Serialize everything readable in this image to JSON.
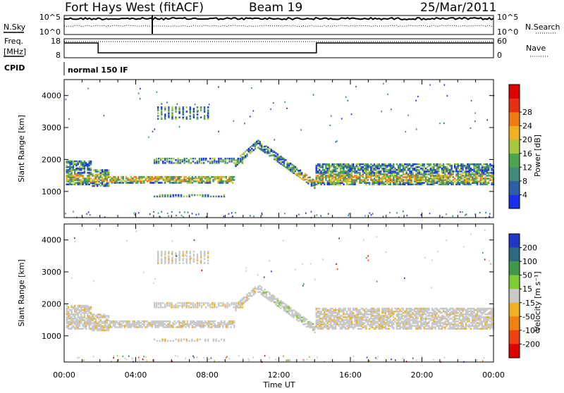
{
  "header": {
    "station": "Fort Hays West (fitACF)",
    "beam": "Beam 19",
    "date": "25/Mar/2011"
  },
  "aux_panels": {
    "nsky_label": "N.Sky",
    "nsky_ticks": [
      "10^5",
      "10^0"
    ],
    "nsearch_label": "N.Search",
    "nsearch_ticks": [
      "10^5",
      "10^0"
    ],
    "freq_label_1": "Freq.",
    "freq_label_2": "[MHz]",
    "freq_ticks": [
      "18",
      "8"
    ],
    "nave_label": "Nave",
    "nave_ticks": [
      "60",
      "0"
    ],
    "cpid_label": "CPID",
    "cpid_value": "normal 150 IF"
  },
  "chart_data": [
    {
      "type": "heatmap",
      "name": "power",
      "ylabel": "Slant Range [km]",
      "xlabel": "",
      "ylim": [
        180,
        4500
      ],
      "xlim_hours": [
        0,
        24
      ],
      "yticks": [
        "1000",
        "2000",
        "3000",
        "4000"
      ],
      "colorbar": {
        "label": "Power [dB]",
        "ticks": [
          "4",
          "8",
          "12",
          "16",
          "20",
          "24",
          "28"
        ],
        "colors": [
          "#1a2ef0",
          "#2b5fa8",
          "#3f8a7a",
          "#4ea34f",
          "#a8c83c",
          "#f0b020",
          "#f07a10",
          "#e83010",
          "#e00000"
        ]
      }
    },
    {
      "type": "heatmap",
      "name": "velocity",
      "ylabel": "Slant Range [km]",
      "xlabel": "Time UT",
      "ylim": [
        180,
        4500
      ],
      "xlim_hours": [
        0,
        24
      ],
      "yticks": [
        "1000",
        "2000",
        "3000",
        "4000"
      ],
      "xticks": [
        "00:00",
        "04:00",
        "08:00",
        "12:00",
        "16:00",
        "20:00",
        "00:00"
      ],
      "colorbar": {
        "label": "Velocity [m s⁻¹]",
        "ticks": [
          "200",
          "100",
          "50",
          "15",
          "-15",
          "-50",
          "-100",
          "-200"
        ],
        "colors": [
          "#1f38c8",
          "#2c6a7e",
          "#3e9a4a",
          "#7fcc32",
          "#c8c8c8",
          "#f0b020",
          "#f08010",
          "#f04010",
          "#e00000"
        ]
      }
    }
  ]
}
